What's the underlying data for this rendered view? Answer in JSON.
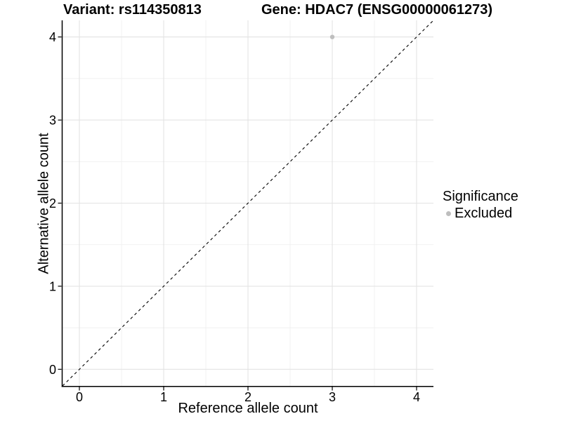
{
  "chart_data": {
    "type": "scatter",
    "title_left": "Variant: rs114350813",
    "title_right": "Gene: HDAC7 (ENSG00000061273)",
    "xlabel": "Reference allele count",
    "ylabel": "Alternative allele count",
    "xlim": [
      -0.2,
      4.2
    ],
    "ylim": [
      -0.2,
      4.2
    ],
    "x_ticks": [
      0,
      1,
      2,
      3,
      4
    ],
    "y_ticks": [
      0,
      1,
      2,
      3,
      4
    ],
    "x_minor_ticks": [
      0.5,
      1.5,
      2.5,
      3.5
    ],
    "y_minor_ticks": [
      0.5,
      1.5,
      2.5,
      3.5
    ],
    "grid": true,
    "legend_position": "right",
    "series": [
      {
        "name": "Excluded",
        "color": "#bebebe",
        "points": [
          [
            3,
            4
          ]
        ]
      }
    ],
    "reference_line": {
      "kind": "abline",
      "slope": 1,
      "intercept": 0,
      "style": "dashed",
      "color": "#000000"
    }
  },
  "legend": {
    "title": "Significance",
    "items": [
      {
        "label": "Excluded",
        "color": "#bebebe",
        "marker": "point-icon"
      }
    ]
  },
  "colors": {
    "background": "#ffffff",
    "grid_major": "#e3e3e3",
    "grid_minor": "#f0f0f0",
    "axis": "#000000",
    "text": "#000000"
  }
}
